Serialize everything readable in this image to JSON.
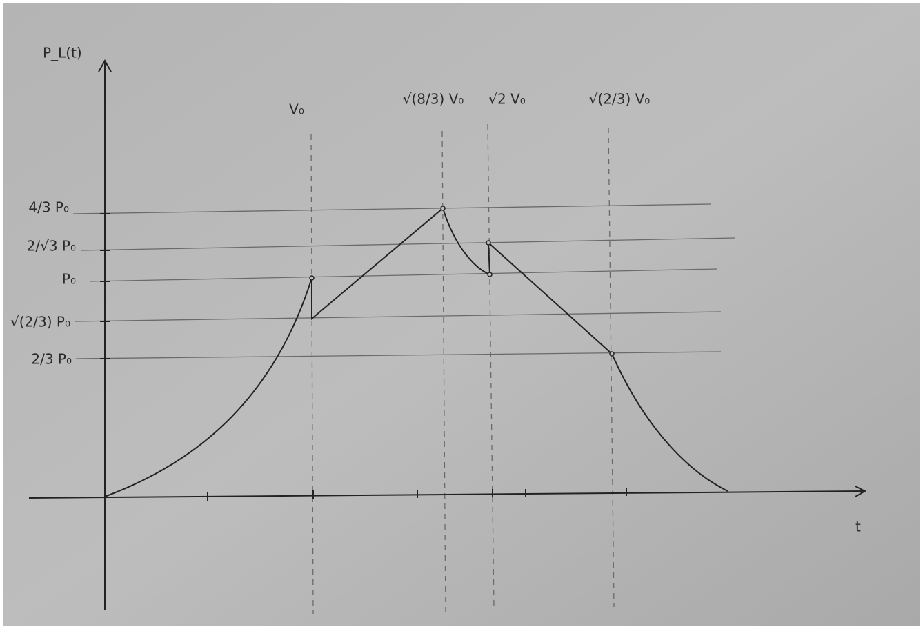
{
  "axes": {
    "y_label": "P_L(t)",
    "x_label": "t"
  },
  "vertical_markers": [
    {
      "label": "V₀"
    },
    {
      "label": "√(8/3) V₀"
    },
    {
      "label": "√2 V₀"
    },
    {
      "label": "√(2/3) V₀"
    }
  ],
  "levels": [
    {
      "label": "4/3 P₀"
    },
    {
      "label": "2/√3 P₀"
    },
    {
      "label": "P₀"
    },
    {
      "label": "√(2/3) P₀"
    },
    {
      "label": "2/3 P₀"
    }
  ]
}
